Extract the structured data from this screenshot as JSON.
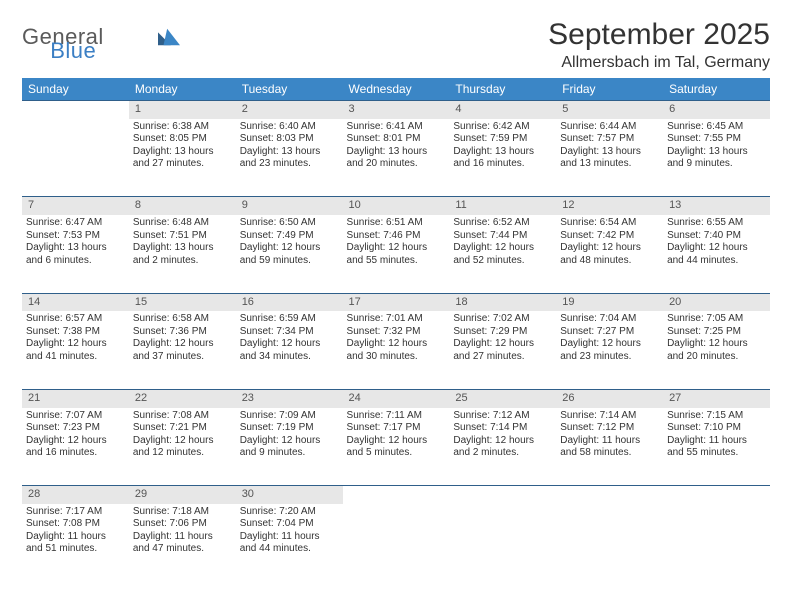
{
  "logo": {
    "text1": "General",
    "text2": "Blue"
  },
  "title": "September 2025",
  "location": "Allmersbach im Tal, Germany",
  "colors": {
    "header_bg": "#3b86c6",
    "header_text": "#ffffff",
    "daynum_bg": "#e7e7e7",
    "border": "#2f5f8a",
    "logo_gray": "#5a5a5a",
    "logo_blue": "#3b7fc4"
  },
  "dayHeaders": [
    "Sunday",
    "Monday",
    "Tuesday",
    "Wednesday",
    "Thursday",
    "Friday",
    "Saturday"
  ],
  "weeks": [
    {
      "nums": [
        "",
        "1",
        "2",
        "3",
        "4",
        "5",
        "6"
      ],
      "cells": [
        [],
        [
          "Sunrise: 6:38 AM",
          "Sunset: 8:05 PM",
          "Daylight: 13 hours",
          "and 27 minutes."
        ],
        [
          "Sunrise: 6:40 AM",
          "Sunset: 8:03 PM",
          "Daylight: 13 hours",
          "and 23 minutes."
        ],
        [
          "Sunrise: 6:41 AM",
          "Sunset: 8:01 PM",
          "Daylight: 13 hours",
          "and 20 minutes."
        ],
        [
          "Sunrise: 6:42 AM",
          "Sunset: 7:59 PM",
          "Daylight: 13 hours",
          "and 16 minutes."
        ],
        [
          "Sunrise: 6:44 AM",
          "Sunset: 7:57 PM",
          "Daylight: 13 hours",
          "and 13 minutes."
        ],
        [
          "Sunrise: 6:45 AM",
          "Sunset: 7:55 PM",
          "Daylight: 13 hours",
          "and 9 minutes."
        ]
      ]
    },
    {
      "nums": [
        "7",
        "8",
        "9",
        "10",
        "11",
        "12",
        "13"
      ],
      "cells": [
        [
          "Sunrise: 6:47 AM",
          "Sunset: 7:53 PM",
          "Daylight: 13 hours",
          "and 6 minutes."
        ],
        [
          "Sunrise: 6:48 AM",
          "Sunset: 7:51 PM",
          "Daylight: 13 hours",
          "and 2 minutes."
        ],
        [
          "Sunrise: 6:50 AM",
          "Sunset: 7:49 PM",
          "Daylight: 12 hours",
          "and 59 minutes."
        ],
        [
          "Sunrise: 6:51 AM",
          "Sunset: 7:46 PM",
          "Daylight: 12 hours",
          "and 55 minutes."
        ],
        [
          "Sunrise: 6:52 AM",
          "Sunset: 7:44 PM",
          "Daylight: 12 hours",
          "and 52 minutes."
        ],
        [
          "Sunrise: 6:54 AM",
          "Sunset: 7:42 PM",
          "Daylight: 12 hours",
          "and 48 minutes."
        ],
        [
          "Sunrise: 6:55 AM",
          "Sunset: 7:40 PM",
          "Daylight: 12 hours",
          "and 44 minutes."
        ]
      ]
    },
    {
      "nums": [
        "14",
        "15",
        "16",
        "17",
        "18",
        "19",
        "20"
      ],
      "cells": [
        [
          "Sunrise: 6:57 AM",
          "Sunset: 7:38 PM",
          "Daylight: 12 hours",
          "and 41 minutes."
        ],
        [
          "Sunrise: 6:58 AM",
          "Sunset: 7:36 PM",
          "Daylight: 12 hours",
          "and 37 minutes."
        ],
        [
          "Sunrise: 6:59 AM",
          "Sunset: 7:34 PM",
          "Daylight: 12 hours",
          "and 34 minutes."
        ],
        [
          "Sunrise: 7:01 AM",
          "Sunset: 7:32 PM",
          "Daylight: 12 hours",
          "and 30 minutes."
        ],
        [
          "Sunrise: 7:02 AM",
          "Sunset: 7:29 PM",
          "Daylight: 12 hours",
          "and 27 minutes."
        ],
        [
          "Sunrise: 7:04 AM",
          "Sunset: 7:27 PM",
          "Daylight: 12 hours",
          "and 23 minutes."
        ],
        [
          "Sunrise: 7:05 AM",
          "Sunset: 7:25 PM",
          "Daylight: 12 hours",
          "and 20 minutes."
        ]
      ]
    },
    {
      "nums": [
        "21",
        "22",
        "23",
        "24",
        "25",
        "26",
        "27"
      ],
      "cells": [
        [
          "Sunrise: 7:07 AM",
          "Sunset: 7:23 PM",
          "Daylight: 12 hours",
          "and 16 minutes."
        ],
        [
          "Sunrise: 7:08 AM",
          "Sunset: 7:21 PM",
          "Daylight: 12 hours",
          "and 12 minutes."
        ],
        [
          "Sunrise: 7:09 AM",
          "Sunset: 7:19 PM",
          "Daylight: 12 hours",
          "and 9 minutes."
        ],
        [
          "Sunrise: 7:11 AM",
          "Sunset: 7:17 PM",
          "Daylight: 12 hours",
          "and 5 minutes."
        ],
        [
          "Sunrise: 7:12 AM",
          "Sunset: 7:14 PM",
          "Daylight: 12 hours",
          "and 2 minutes."
        ],
        [
          "Sunrise: 7:14 AM",
          "Sunset: 7:12 PM",
          "Daylight: 11 hours",
          "and 58 minutes."
        ],
        [
          "Sunrise: 7:15 AM",
          "Sunset: 7:10 PM",
          "Daylight: 11 hours",
          "and 55 minutes."
        ]
      ]
    },
    {
      "nums": [
        "28",
        "29",
        "30",
        "",
        "",
        "",
        ""
      ],
      "cells": [
        [
          "Sunrise: 7:17 AM",
          "Sunset: 7:08 PM",
          "Daylight: 11 hours",
          "and 51 minutes."
        ],
        [
          "Sunrise: 7:18 AM",
          "Sunset: 7:06 PM",
          "Daylight: 11 hours",
          "and 47 minutes."
        ],
        [
          "Sunrise: 7:20 AM",
          "Sunset: 7:04 PM",
          "Daylight: 11 hours",
          "and 44 minutes."
        ],
        [],
        [],
        [],
        []
      ]
    }
  ]
}
